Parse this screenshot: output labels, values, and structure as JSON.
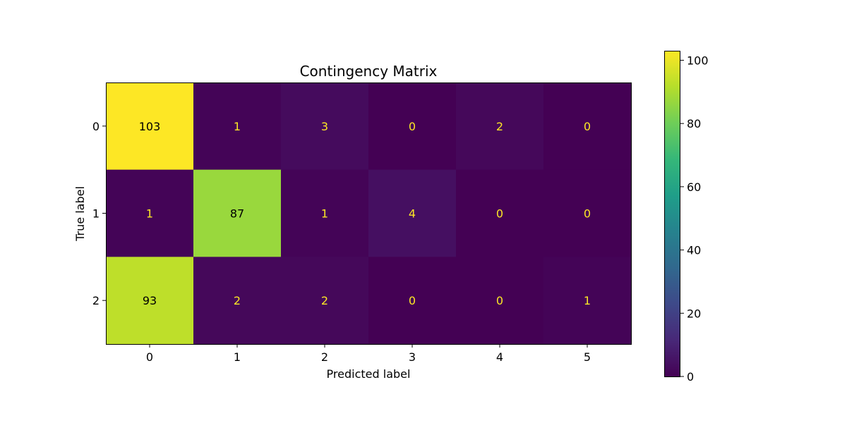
{
  "chart_data": {
    "type": "heatmap",
    "title": "Contingency Matrix",
    "xlabel": "Predicted label",
    "ylabel": "True label",
    "x_categories": [
      "0",
      "1",
      "2",
      "3",
      "4",
      "5"
    ],
    "y_categories": [
      "0",
      "1",
      "2"
    ],
    "values": [
      [
        103,
        1,
        3,
        0,
        2,
        0
      ],
      [
        1,
        87,
        1,
        4,
        0,
        0
      ],
      [
        93,
        2,
        2,
        0,
        0,
        1
      ]
    ],
    "colormap": "viridis",
    "vmin": 0,
    "vmax": 103,
    "colorbar": {
      "ticks": [
        0,
        20,
        40,
        60,
        80,
        100
      ],
      "tick_labels": [
        "0",
        "20",
        "40",
        "60",
        "80",
        "100"
      ]
    },
    "label_color_dark_cell": "#fde725",
    "label_color_light_cell": "#000000"
  }
}
